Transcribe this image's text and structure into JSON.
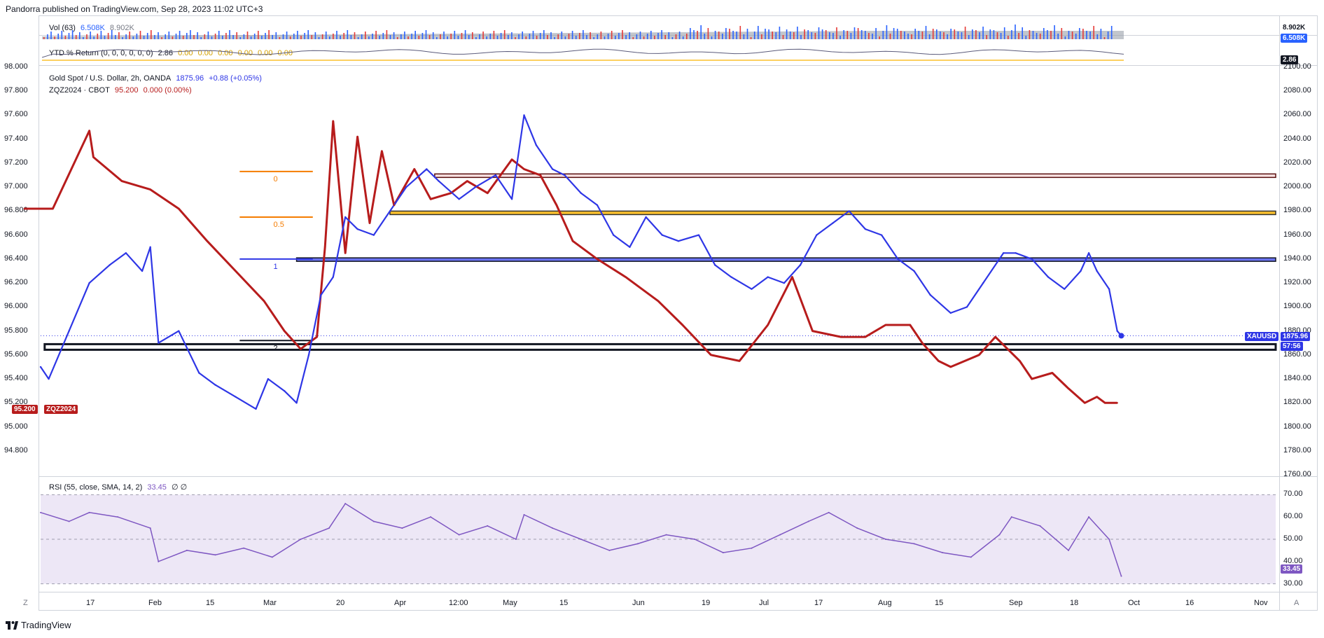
{
  "publisher_line": "Pandorra published on TradingView.com, Sep 28, 2023 11:02 UTC+3",
  "footer_brand": "TradingView",
  "vol_pane": {
    "label": "Vol (63)",
    "value1": "6.508K",
    "value2": "8.902K",
    "badge_top": "8.902K",
    "badge_bottom": "6.508K"
  },
  "ytd_pane": {
    "label": "YTD % Return (0, 0, 0, 0, 0, 0)",
    "value": "2.86",
    "zeros": [
      "0.00",
      "0.00",
      "0.00",
      "0.00",
      "0.00",
      "0.00"
    ],
    "badge": "2.86"
  },
  "main_legend": {
    "line1_name": "Gold Spot / U.S. Dollar, 2h, OANDA",
    "line1_price": "1875.96",
    "line1_change": "+0.88 (+0.05%)",
    "line2_name": "ZQZ2024 · CBOT",
    "line2_price": "95.200",
    "line2_change": "0.000 (0.00%)"
  },
  "left_axis_ticks": [
    "98.000",
    "97.800",
    "97.600",
    "97.400",
    "97.200",
    "97.000",
    "96.800",
    "96.600",
    "96.400",
    "96.200",
    "96.000",
    "95.800",
    "95.600",
    "95.400",
    "95.200",
    "95.000",
    "94.800"
  ],
  "right_axis_ticks": [
    "2100.00",
    "2080.00",
    "2060.00",
    "2040.00",
    "2020.00",
    "2000.00",
    "1980.00",
    "1960.00",
    "1940.00",
    "1920.00",
    "1900.00",
    "1880.00",
    "1860.00",
    "1840.00",
    "1820.00",
    "1800.00",
    "1780.00",
    "1760.00"
  ],
  "left_badge": {
    "value": "95.200",
    "symbol": "ZQZ2024"
  },
  "right_badge": {
    "symbol": "XAUUSD",
    "value": "1875.96",
    "countdown": "57:56"
  },
  "fib_labels": [
    "0",
    "0.5",
    "1",
    "2"
  ],
  "rsi_pane": {
    "label": "RSI (55, close, SMA, 14, 2)",
    "value": "33.45",
    "extra": "∅ ∅",
    "ticks": [
      "70.00",
      "60.00",
      "50.00",
      "40.00",
      "30.00"
    ],
    "badge": "33.45"
  },
  "time_axis_labels": [
    "17",
    "Feb",
    "15",
    "Mar",
    "20",
    "Apr",
    "12:00",
    "May",
    "15",
    "Jun",
    "19",
    "Jul",
    "17",
    "Aug",
    "15",
    "Sep",
    "18",
    "Oct",
    "16",
    "Nov"
  ],
  "buttons": {
    "zoom": "Z",
    "auto": "A"
  },
  "colors": {
    "gold_line": "#2e36e6",
    "zq_line": "#b71c1c",
    "rsi_line": "#7e57c2",
    "rsi_band": "#ede7f6",
    "fib_orange": "#f57c00",
    "fib_yellow": "#fbc02d",
    "fib_blue": "#2e36e6",
    "vol_up": "#2962ff",
    "vol_down": "#e53935"
  },
  "chart_data": [
    {
      "type": "line",
      "title": "",
      "series": [
        {
          "name": "Gold Spot / U.S. Dollar",
          "axis": "right",
          "x": [
            "2023-01-05",
            "2023-01-07",
            "2023-01-12",
            "2023-01-17",
            "2023-01-22",
            "2023-01-26",
            "2023-01-30",
            "2023-02-01",
            "2023-02-03",
            "2023-02-08",
            "2023-02-13",
            "2023-02-17",
            "2023-02-22",
            "2023-02-27",
            "2023-03-02",
            "2023-03-06",
            "2023-03-09",
            "2023-03-12",
            "2023-03-15",
            "2023-03-18",
            "2023-03-21",
            "2023-03-24",
            "2023-03-28",
            "2023-04-01",
            "2023-04-05",
            "2023-04-10",
            "2023-04-13",
            "2023-04-18",
            "2023-04-22",
            "2023-04-27",
            "2023-05-01",
            "2023-05-04",
            "2023-05-07",
            "2023-05-11",
            "2023-05-14",
            "2023-05-18",
            "2023-05-22",
            "2023-05-26",
            "2023-05-30",
            "2023-06-03",
            "2023-06-07",
            "2023-06-11",
            "2023-06-16",
            "2023-06-20",
            "2023-06-24",
            "2023-06-29",
            "2023-07-03",
            "2023-07-07",
            "2023-07-11",
            "2023-07-15",
            "2023-07-19",
            "2023-07-23",
            "2023-07-27",
            "2023-07-31",
            "2023-08-04",
            "2023-08-08",
            "2023-08-12",
            "2023-08-17",
            "2023-08-21",
            "2023-08-25",
            "2023-08-30",
            "2023-09-02",
            "2023-09-06",
            "2023-09-10",
            "2023-09-14",
            "2023-09-18",
            "2023-09-20",
            "2023-09-22",
            "2023-09-25",
            "2023-09-27",
            "2023-09-28"
          ],
          "y": [
            1850,
            1840,
            1880,
            1920,
            1935,
            1945,
            1930,
            1950,
            1870,
            1880,
            1845,
            1835,
            1825,
            1815,
            1840,
            1830,
            1820,
            1860,
            1910,
            1925,
            1975,
            1965,
            1960,
            1980,
            2000,
            2015,
            2005,
            1990,
            2000,
            2010,
            1990,
            2060,
            2035,
            2015,
            2010,
            1995,
            1985,
            1960,
            1950,
            1975,
            1960,
            1955,
            1960,
            1935,
            1925,
            1915,
            1925,
            1920,
            1935,
            1960,
            1970,
            1980,
            1965,
            1960,
            1940,
            1930,
            1910,
            1895,
            1900,
            1920,
            1945,
            1945,
            1940,
            1925,
            1915,
            1930,
            1945,
            1930,
            1915,
            1880,
            1876
          ]
        },
        {
          "name": "ZQZ2024 · CBOT",
          "axis": "left",
          "x": [
            "2023-01-01",
            "2023-01-08",
            "2023-01-17",
            "2023-01-18",
            "2023-01-25",
            "2023-02-01",
            "2023-02-08",
            "2023-02-15",
            "2023-02-22",
            "2023-03-01",
            "2023-03-06",
            "2023-03-10",
            "2023-03-14",
            "2023-03-16",
            "2023-03-18",
            "2023-03-21",
            "2023-03-24",
            "2023-03-27",
            "2023-03-30",
            "2023-04-02",
            "2023-04-07",
            "2023-04-11",
            "2023-04-16",
            "2023-04-20",
            "2023-04-25",
            "2023-05-01",
            "2023-05-04",
            "2023-05-08",
            "2023-05-12",
            "2023-05-16",
            "2023-05-22",
            "2023-05-29",
            "2023-06-06",
            "2023-06-12",
            "2023-06-19",
            "2023-06-26",
            "2023-07-03",
            "2023-07-09",
            "2023-07-14",
            "2023-07-21",
            "2023-07-27",
            "2023-08-01",
            "2023-08-07",
            "2023-08-10",
            "2023-08-14",
            "2023-08-17",
            "2023-08-24",
            "2023-08-28",
            "2023-09-03",
            "2023-09-06",
            "2023-09-11",
            "2023-09-15",
            "2023-09-19",
            "2023-09-22",
            "2023-09-24",
            "2023-09-27"
          ],
          "y": [
            96.82,
            96.82,
            97.47,
            97.25,
            97.05,
            96.98,
            96.82,
            96.55,
            96.3,
            96.05,
            95.8,
            95.65,
            95.75,
            96.5,
            97.55,
            96.45,
            97.42,
            96.7,
            97.3,
            96.85,
            97.15,
            96.9,
            96.95,
            97.05,
            96.95,
            97.23,
            97.15,
            97.1,
            96.85,
            96.55,
            96.4,
            96.25,
            96.05,
            95.85,
            95.6,
            95.55,
            95.85,
            96.25,
            95.8,
            95.75,
            95.75,
            95.85,
            95.85,
            95.7,
            95.55,
            95.5,
            95.6,
            95.75,
            95.55,
            95.4,
            95.45,
            95.32,
            95.2,
            95.25,
            95.2,
            95.2
          ]
        }
      ],
      "ylim_left": [
        94.6,
        98.0
      ],
      "ylim_right": [
        1760,
        2100
      ],
      "xlim": [
        "2023-01-05",
        "2023-11-05"
      ],
      "grid": false
    },
    {
      "type": "line",
      "title": "",
      "series": [
        {
          "name": "RSI",
          "x": [
            "2023-01-05",
            "2023-01-12",
            "2023-01-17",
            "2023-01-24",
            "2023-02-01",
            "2023-02-03",
            "2023-02-10",
            "2023-02-17",
            "2023-02-24",
            "2023-03-03",
            "2023-03-10",
            "2023-03-17",
            "2023-03-21",
            "2023-03-28",
            "2023-04-04",
            "2023-04-11",
            "2023-04-18",
            "2023-04-25",
            "2023-05-02",
            "2023-05-04",
            "2023-05-11",
            "2023-05-18",
            "2023-05-25",
            "2023-06-01",
            "2023-06-08",
            "2023-06-15",
            "2023-06-22",
            "2023-06-29",
            "2023-07-06",
            "2023-07-13",
            "2023-07-18",
            "2023-07-25",
            "2023-08-01",
            "2023-08-08",
            "2023-08-15",
            "2023-08-22",
            "2023-08-29",
            "2023-09-01",
            "2023-09-08",
            "2023-09-15",
            "2023-09-20",
            "2023-09-25",
            "2023-09-28"
          ],
          "y": [
            62,
            58,
            62,
            60,
            55,
            40,
            45,
            43,
            46,
            42,
            50,
            55,
            66,
            58,
            55,
            60,
            52,
            56,
            50,
            61,
            55,
            50,
            45,
            48,
            52,
            50,
            44,
            46,
            52,
            58,
            62,
            55,
            50,
            48,
            44,
            42,
            52,
            60,
            56,
            45,
            60,
            50,
            33.45
          ]
        }
      ],
      "ylim": [
        28,
        72
      ],
      "levels": [
        70,
        50,
        30
      ],
      "grid": false
    }
  ]
}
